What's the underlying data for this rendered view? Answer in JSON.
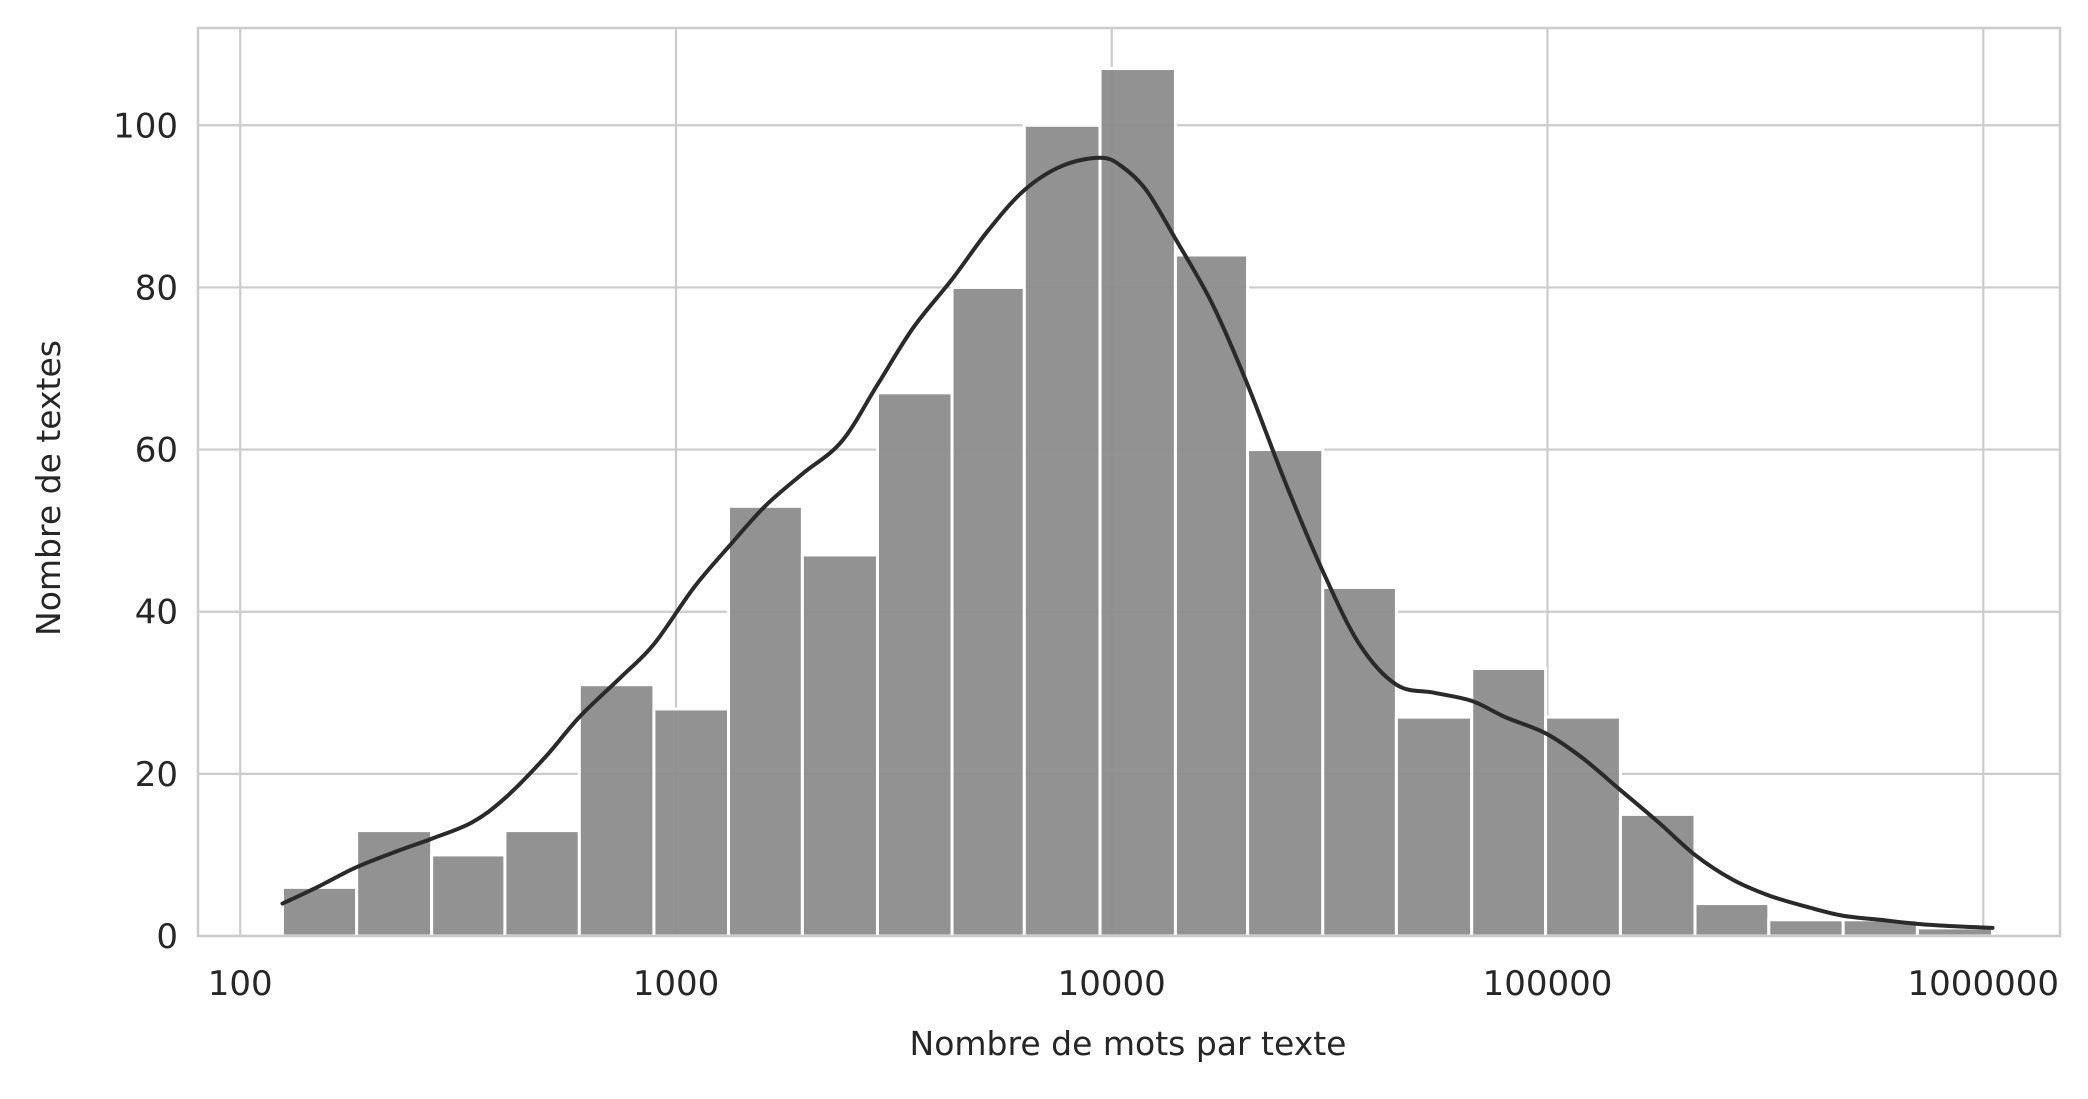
{
  "chart_data": {
    "type": "bar",
    "xlabel": "Nombre de mots par texte",
    "ylabel": "Nombre de textes",
    "x_scale": "log",
    "xlim": [
      80,
      1500000
    ],
    "ylim": [
      0,
      112
    ],
    "x_ticks": [
      100,
      1000,
      10000,
      100000,
      1000000
    ],
    "x_tick_labels": [
      "100",
      "1000",
      "10000",
      "100000",
      "1000000"
    ],
    "y_ticks": [
      0,
      20,
      40,
      60,
      80,
      100
    ],
    "y_tick_labels": [
      "0",
      "20",
      "40",
      "60",
      "80",
      "100"
    ],
    "grid": true,
    "bins": [
      {
        "x_start": 125,
        "x_end": 185,
        "value": 6
      },
      {
        "x_start": 185,
        "x_end": 275,
        "value": 13
      },
      {
        "x_start": 275,
        "x_end": 405,
        "value": 10
      },
      {
        "x_start": 405,
        "x_end": 600,
        "value": 13
      },
      {
        "x_start": 600,
        "x_end": 890,
        "value": 31
      },
      {
        "x_start": 890,
        "x_end": 1320,
        "value": 28
      },
      {
        "x_start": 1320,
        "x_end": 1950,
        "value": 53
      },
      {
        "x_start": 1950,
        "x_end": 2900,
        "value": 47
      },
      {
        "x_start": 2900,
        "x_end": 4300,
        "value": 67
      },
      {
        "x_start": 4300,
        "x_end": 6300,
        "value": 80
      },
      {
        "x_start": 6300,
        "x_end": 9400,
        "value": 100
      },
      {
        "x_start": 9400,
        "x_end": 14000,
        "value": 107
      },
      {
        "x_start": 14000,
        "x_end": 20500,
        "value": 84
      },
      {
        "x_start": 20500,
        "x_end": 30500,
        "value": 60
      },
      {
        "x_start": 30500,
        "x_end": 45000,
        "value": 43
      },
      {
        "x_start": 45000,
        "x_end": 67000,
        "value": 27
      },
      {
        "x_start": 67000,
        "x_end": 99000,
        "value": 33
      },
      {
        "x_start": 99000,
        "x_end": 147000,
        "value": 27
      },
      {
        "x_start": 147000,
        "x_end": 218000,
        "value": 15
      },
      {
        "x_start": 218000,
        "x_end": 322000,
        "value": 4
      },
      {
        "x_start": 322000,
        "x_end": 477000,
        "value": 2
      },
      {
        "x_start": 477000,
        "x_end": 706000,
        "value": 2
      },
      {
        "x_start": 706000,
        "x_end": 1050000,
        "value": 1
      }
    ],
    "kde_curve": {
      "x": [
        125,
        150,
        185,
        230,
        275,
        340,
        405,
        500,
        600,
        750,
        890,
        1100,
        1320,
        1600,
        1950,
        2400,
        2900,
        3500,
        4300,
        5200,
        6300,
        7700,
        9400,
        10500,
        12000,
        14000,
        17000,
        20500,
        25000,
        30500,
        37000,
        45000,
        55000,
        67000,
        80000,
        99000,
        120000,
        147000,
        180000,
        218000,
        265000,
        322000,
        400000,
        477000,
        580000,
        706000,
        860000,
        1050000
      ],
      "y": [
        4,
        6,
        8.5,
        10.5,
        12,
        14,
        17,
        22,
        27,
        32,
        36,
        43,
        48,
        53,
        57,
        61,
        68,
        75,
        81,
        87,
        92,
        95,
        96,
        95,
        92,
        86,
        78,
        68,
        56,
        45,
        36,
        31,
        30,
        29,
        27,
        25,
        22,
        18,
        14,
        10,
        7,
        5,
        3.5,
        2.5,
        2,
        1.5,
        1.2,
        1
      ]
    },
    "colors": {
      "bars": "#8c8c8c",
      "curve": "#2a2a2a",
      "grid": "#cccccc",
      "axes_edge": "#cccccc"
    }
  }
}
